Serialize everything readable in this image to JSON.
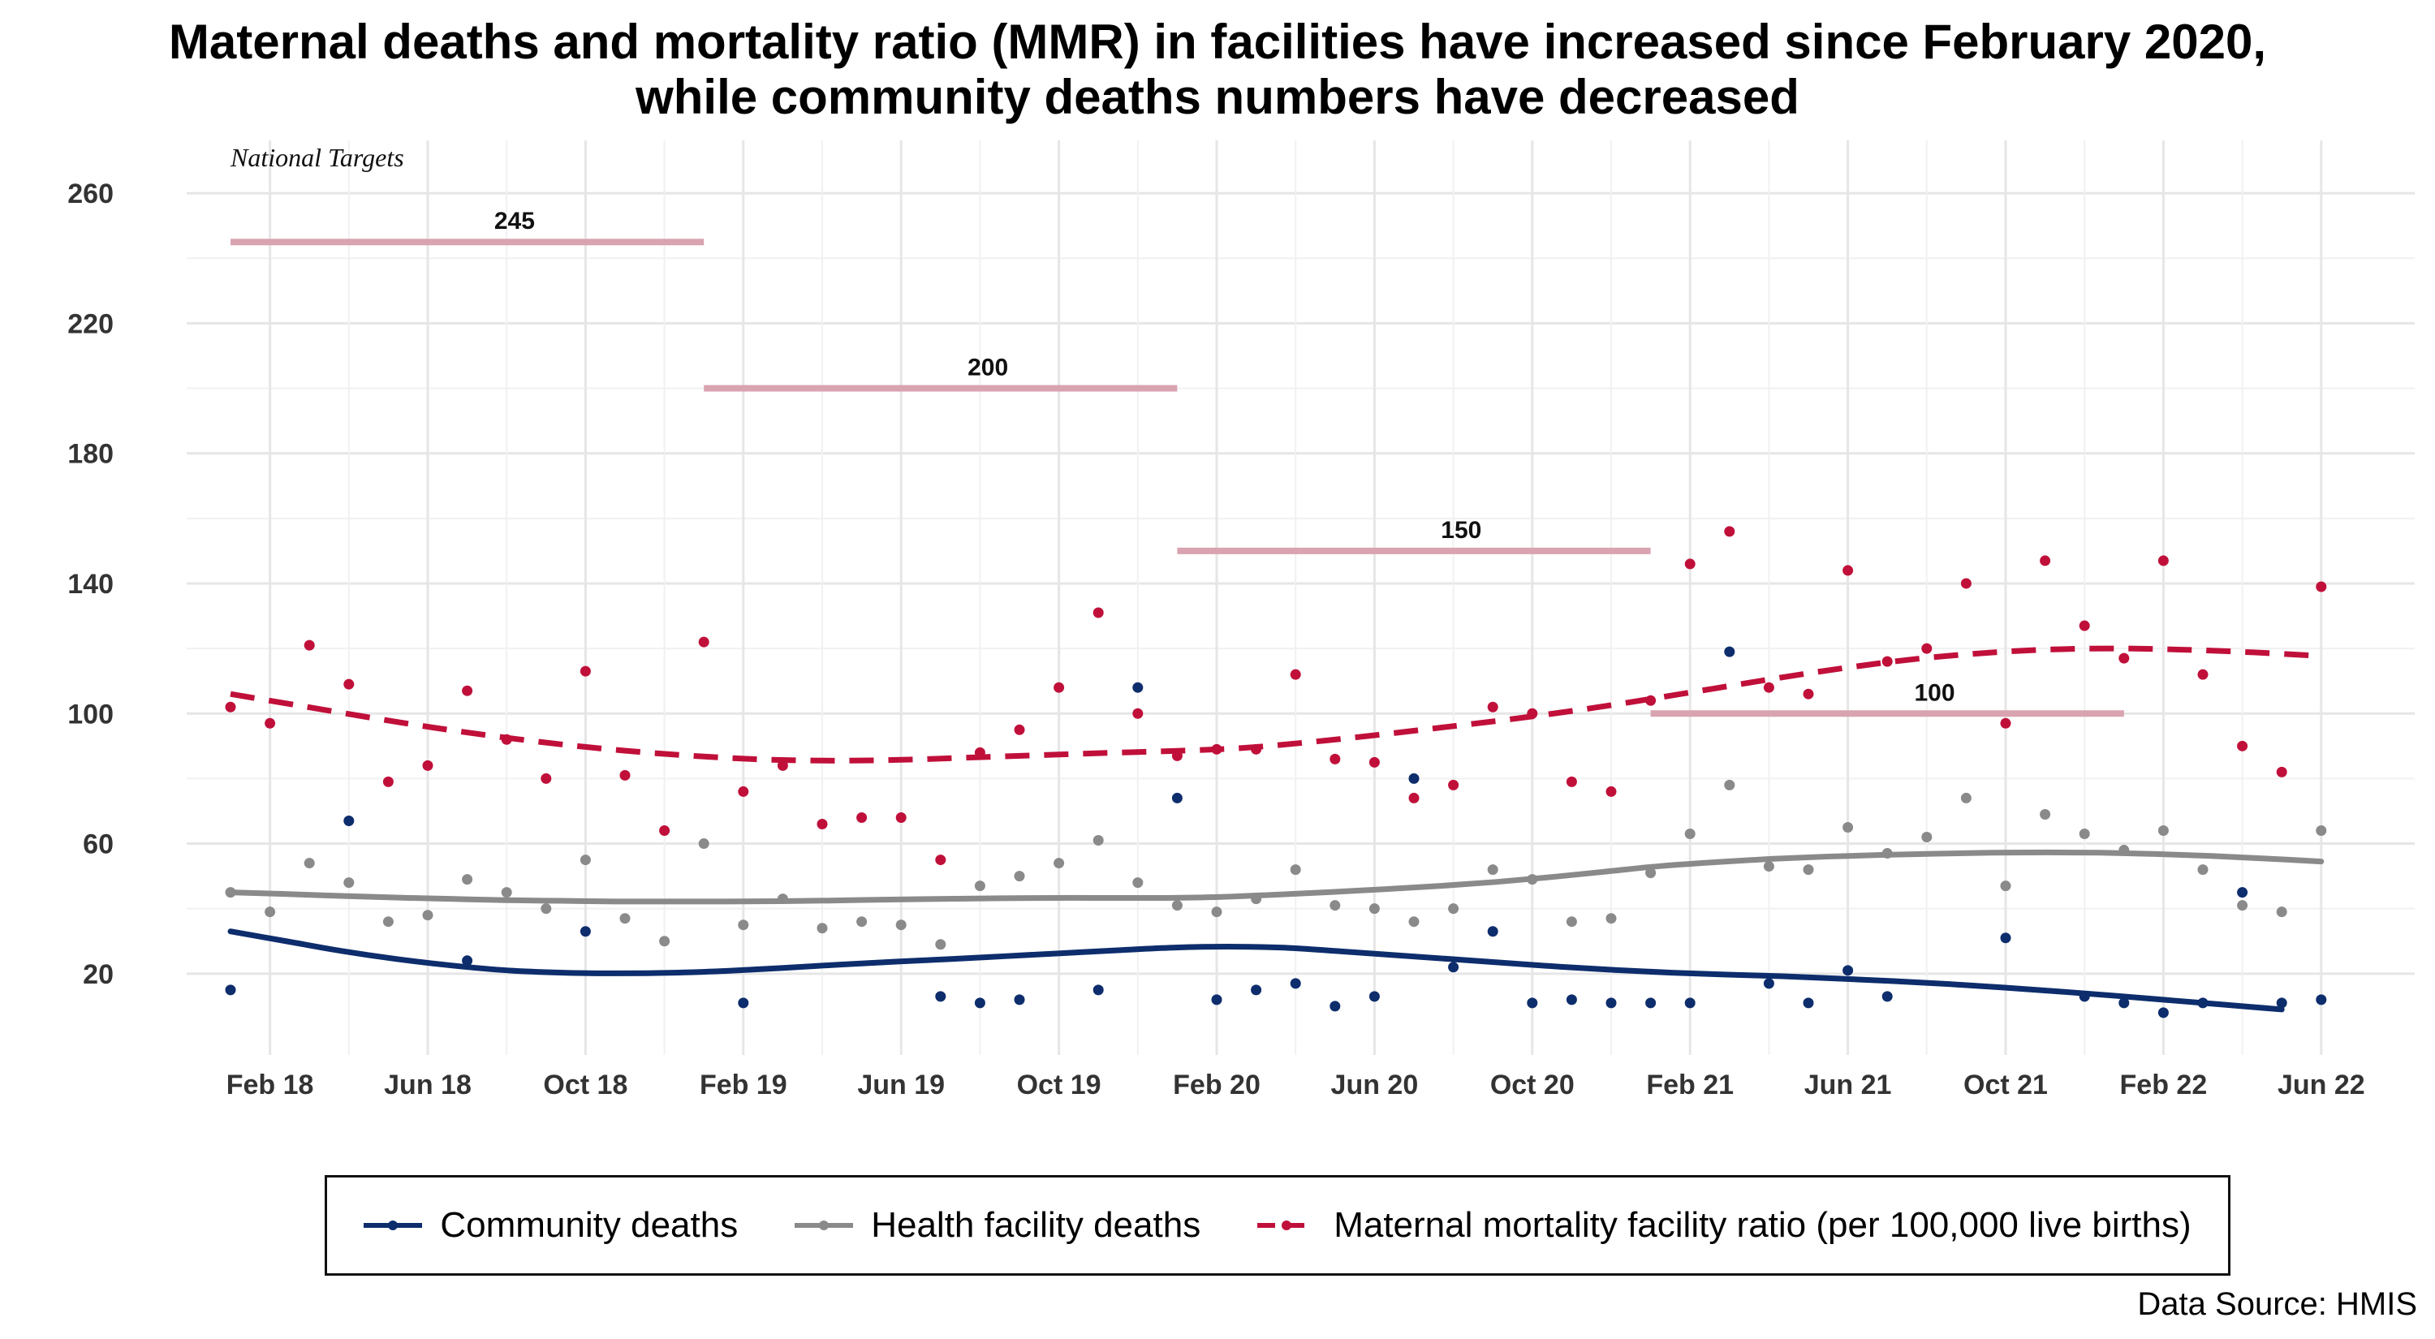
{
  "title_line1": "Maternal deaths and mortality ratio (MMR) in facilities have increased since February 2020,",
  "title_line2": "while community deaths numbers have decreased",
  "targets_label": "National Targets",
  "source": "Data Source: HMIS",
  "colors": {
    "community": "#0d2d6c",
    "facility": "#8a8a8a",
    "mmr": "#c0103a",
    "target": "#d9a3b0",
    "grid": "#e6e6e6"
  },
  "chart_data": {
    "type": "line",
    "ylim": [
      -5,
      275
    ],
    "y_ticks": [
      20,
      60,
      100,
      140,
      180,
      220,
      260
    ],
    "x_ticks": [
      "Feb 18",
      "Jun 18",
      "Oct 18",
      "Feb 19",
      "Jun 19",
      "Oct 19",
      "Feb 20",
      "Jun 20",
      "Oct 20",
      "Feb 21",
      "Jun 21",
      "Oct 21",
      "Feb 22",
      "Jun 22"
    ],
    "x_start_month": "Jan 18",
    "x": [
      "Jan 18",
      "Feb 18",
      "Mar 18",
      "Apr 18",
      "May 18",
      "Jun 18",
      "Jul 18",
      "Aug 18",
      "Sep 18",
      "Oct 18",
      "Nov 18",
      "Dec 18",
      "Jan 19",
      "Feb 19",
      "Mar 19",
      "Apr 19",
      "May 19",
      "Jun 19",
      "Jul 19",
      "Aug 19",
      "Sep 19",
      "Oct 19",
      "Nov 19",
      "Dec 19",
      "Jan 20",
      "Feb 20",
      "Mar 20",
      "Apr 20",
      "May 20",
      "Jun 20",
      "Jul 20",
      "Aug 20",
      "Sep 20",
      "Oct 20",
      "Nov 20",
      "Dec 20",
      "Jan 21",
      "Feb 21",
      "Mar 21",
      "Apr 21",
      "May 21",
      "Jun 21",
      "Jul 21",
      "Aug 21",
      "Sep 21",
      "Oct 21",
      "Nov 21",
      "Dec 21",
      "Jan 22",
      "Feb 22",
      "Mar 22",
      "Apr 22",
      "May 22",
      "Jun 22"
    ],
    "series": [
      {
        "name": "Community deaths",
        "key": "community",
        "points": [
          15,
          null,
          null,
          67,
          null,
          null,
          24,
          null,
          null,
          33,
          null,
          null,
          null,
          11,
          null,
          null,
          null,
          null,
          13,
          11,
          12,
          null,
          15,
          108,
          74,
          12,
          15,
          17,
          10,
          13,
          80,
          22,
          33,
          11,
          12,
          11,
          11,
          11,
          119,
          17,
          11,
          21,
          13,
          null,
          null,
          31,
          null,
          13,
          11,
          8,
          11,
          45,
          11,
          12
        ],
        "trend": [
          33,
          30,
          27,
          24.5,
          22.5,
          21,
          20.3,
          20.1,
          20.3,
          20.9,
          21.8,
          22.8,
          23.7,
          24.5,
          25.4,
          26.3,
          27.2,
          28,
          28.3,
          28,
          26.9,
          25.7,
          24.5,
          23.3,
          22.1,
          21.1,
          20.3,
          19.7,
          19.2,
          18.5,
          17.7,
          16.8,
          15.7,
          14.5,
          13.2,
          11.8,
          10.4,
          9
        ]
      },
      {
        "name": "Health facility deaths",
        "key": "facility",
        "points": [
          45,
          39,
          54,
          48,
          36,
          38,
          49,
          45,
          40,
          55,
          37,
          30,
          60,
          35,
          43,
          34,
          36,
          35,
          29,
          47,
          50,
          54,
          61,
          48,
          41,
          39,
          43,
          52,
          41,
          40,
          36,
          40,
          52,
          49,
          36,
          37,
          51,
          63,
          78,
          53,
          52,
          65,
          57,
          62,
          74,
          47,
          69,
          63,
          58,
          64,
          52,
          41,
          39,
          64
        ],
        "trend": [
          45,
          44.5,
          43.9,
          43.4,
          43,
          42.6,
          42.4,
          42.2,
          42.2,
          42.2,
          42.3,
          42.5,
          42.8,
          43,
          43.2,
          43.3,
          43.3,
          43.3,
          43.6,
          44.3,
          45.1,
          46,
          47,
          48.2,
          49.7,
          51.4,
          53.1,
          54.3,
          55.3,
          56,
          56.5,
          56.9,
          57.2,
          57.3,
          57.2,
          56.8,
          56.2,
          55.4,
          54.5
        ]
      },
      {
        "name": "Maternal mortality facility ratio (per 100,000 live births)",
        "key": "mmr",
        "points": [
          102,
          97,
          121,
          109,
          79,
          84,
          107,
          92,
          80,
          113,
          81,
          64,
          122,
          76,
          84,
          66,
          68,
          68,
          55,
          88,
          95,
          108,
          131,
          100,
          87,
          89,
          89,
          112,
          86,
          85,
          74,
          78,
          102,
          100,
          79,
          76,
          104,
          146,
          156,
          108,
          106,
          144,
          116,
          120,
          140,
          97,
          147,
          127,
          117,
          147,
          112,
          90,
          82,
          139
        ]
      }
    ],
    "mmr_trend": [
      106,
      102.5,
      99,
      95.7,
      92.8,
      90.3,
      88.3,
      86.8,
      85.8,
      85.5,
      85.8,
      86.5,
      87.2,
      87.9,
      88.5,
      89.4,
      91.2,
      93.4,
      95.8,
      98.3,
      101.1,
      104.3,
      107.7,
      111.1,
      114.2,
      116.8,
      118.6,
      119.7,
      120,
      119.6,
      118.8,
      117.7
    ],
    "targets": [
      {
        "label": "245",
        "value": 245,
        "from": "Jan 18",
        "to": "Jan 19"
      },
      {
        "label": "200",
        "value": 200,
        "from": "Jan 19",
        "to": "Jan 20"
      },
      {
        "label": "150",
        "value": 150,
        "from": "Jan 20",
        "to": "Jan 21"
      },
      {
        "label": "100",
        "value": 100,
        "from": "Jan 21",
        "to": "Jan 22"
      }
    ],
    "legend_position": "bottom",
    "grid": true
  }
}
